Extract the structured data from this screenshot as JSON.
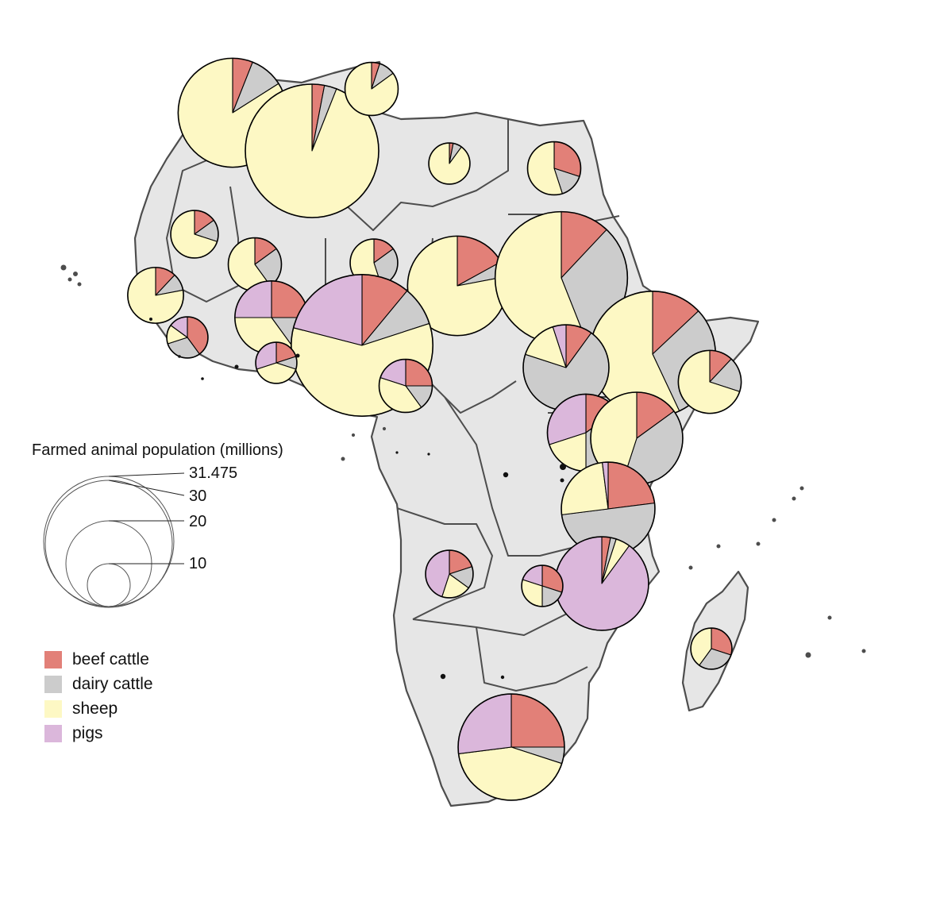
{
  "legend": {
    "title": "Farmed animal population (millions)",
    "size_labels": [
      "31.475",
      "30",
      "20",
      "10"
    ],
    "categories": [
      {
        "label": "beef cattle",
        "color": "#e28078"
      },
      {
        "label": "dairy cattle",
        "color": "#cccccc"
      },
      {
        "label": "sheep",
        "color": "#fdf8c4"
      },
      {
        "label": "pigs",
        "color": "#dbb7db"
      }
    ]
  },
  "chart_data": {
    "type": "map-pie",
    "size_legend_values": [
      31.475,
      30,
      20,
      10
    ],
    "series_order": [
      "beef cattle",
      "dairy cattle",
      "sheep",
      "pigs"
    ],
    "countries": [
      {
        "name": "Morocco",
        "total": 21,
        "shares": [
          0.06,
          0.1,
          0.84,
          0.0
        ]
      },
      {
        "name": "Algeria",
        "total": 31.475,
        "shares": [
          0.03,
          0.03,
          0.94,
          0.0
        ]
      },
      {
        "name": "Tunisia",
        "total": 5,
        "shares": [
          0.05,
          0.1,
          0.85,
          0.0
        ]
      },
      {
        "name": "Libya",
        "total": 3,
        "shares": [
          0.03,
          0.07,
          0.9,
          0.0
        ]
      },
      {
        "name": "Egypt",
        "total": 5,
        "shares": [
          0.3,
          0.15,
          0.55,
          0.0
        ]
      },
      {
        "name": "Mauritania",
        "total": 4,
        "shares": [
          0.15,
          0.15,
          0.7,
          0.0
        ]
      },
      {
        "name": "Mali",
        "total": 5,
        "shares": [
          0.15,
          0.25,
          0.6,
          0.0
        ]
      },
      {
        "name": "Niger",
        "total": 4,
        "shares": [
          0.15,
          0.3,
          0.55,
          0.0
        ]
      },
      {
        "name": "Chad",
        "total": 17.5,
        "shares": [
          0.17,
          0.05,
          0.78,
          0.0
        ]
      },
      {
        "name": "Sudan",
        "total": 31,
        "shares": [
          0.12,
          0.32,
          0.56,
          0.0
        ]
      },
      {
        "name": "Senegal",
        "total": 5.5,
        "shares": [
          0.12,
          0.1,
          0.78,
          0.0
        ]
      },
      {
        "name": "Guinea",
        "total": 3,
        "shares": [
          0.4,
          0.3,
          0.15,
          0.15
        ]
      },
      {
        "name": "Burkina Faso",
        "total": 9.5,
        "shares": [
          0.25,
          0.15,
          0.35,
          0.25
        ]
      },
      {
        "name": "Nigeria",
        "total": 35.5,
        "shares": [
          0.11,
          0.09,
          0.59,
          0.21
        ]
      },
      {
        "name": "Ghana",
        "total": 3,
        "shares": [
          0.2,
          0.1,
          0.4,
          0.3
        ]
      },
      {
        "name": "Cameroon",
        "total": 5,
        "shares": [
          0.25,
          0.15,
          0.4,
          0.2
        ]
      },
      {
        "name": "Ethiopia",
        "total": 28,
        "shares": [
          0.13,
          0.3,
          0.57,
          0.0
        ]
      },
      {
        "name": "Somalia",
        "total": 7,
        "shares": [
          0.12,
          0.18,
          0.7,
          0.0
        ]
      },
      {
        "name": "South Sudan",
        "total": 13,
        "shares": [
          0.1,
          0.7,
          0.15,
          0.05
        ]
      },
      {
        "name": "Uganda",
        "total": 10.5,
        "shares": [
          0.15,
          0.35,
          0.2,
          0.3
        ]
      },
      {
        "name": "Kenya",
        "total": 15,
        "shares": [
          0.15,
          0.4,
          0.45,
          0.0
        ]
      },
      {
        "name": "Tanzania",
        "total": 15.5,
        "shares": [
          0.23,
          0.5,
          0.25,
          0.02
        ]
      },
      {
        "name": "Malawi",
        "total": 15.5,
        "shares": [
          0.03,
          0.02,
          0.05,
          0.9
        ]
      },
      {
        "name": "Angola",
        "total": 4,
        "shares": [
          0.2,
          0.15,
          0.2,
          0.45
        ]
      },
      {
        "name": "Zambia",
        "total": 3,
        "shares": [
          0.3,
          0.2,
          0.3,
          0.2
        ]
      },
      {
        "name": "South Africa",
        "total": 20,
        "shares": [
          0.25,
          0.05,
          0.43,
          0.27
        ]
      },
      {
        "name": "Madagascar",
        "total": 3,
        "shares": [
          0.3,
          0.3,
          0.4,
          0.0
        ]
      }
    ]
  }
}
